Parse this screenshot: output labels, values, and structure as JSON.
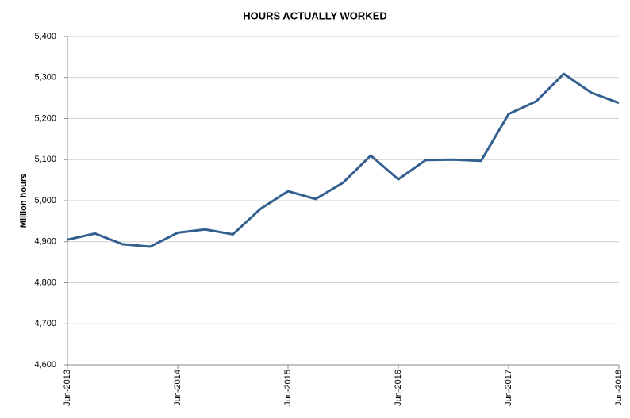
{
  "chart_data": {
    "type": "line",
    "title": "HOURS ACTUALLY WORKED",
    "y_label": "Million  hours",
    "x": [
      "Jun-2013",
      null,
      null,
      null,
      "Jun-2014",
      null,
      null,
      null,
      "Jun-2015",
      null,
      null,
      null,
      "Jun-2016",
      null,
      null,
      null,
      "Jun-2017",
      null,
      null,
      null,
      "Jun-2018"
    ],
    "series": [
      {
        "name": "Hours actually worked",
        "color": "#34608f",
        "values": [
          4905,
          4920,
          4894,
          4888,
          4922,
          4930,
          4918,
          4980,
          5023,
          5004,
          5044,
          5110,
          5052,
          5099,
          5100,
          5097,
          5211,
          5242,
          5309,
          5263,
          5238
        ]
      }
    ],
    "ylim": [
      4600,
      5400
    ],
    "yticks": [
      {
        "value": 4600,
        "label": "4,600"
      },
      {
        "value": 4700,
        "label": "4,700"
      },
      {
        "value": 4800,
        "label": "4,800"
      },
      {
        "value": 4900,
        "label": "4,900"
      },
      {
        "value": 5000,
        "label": "5,000"
      },
      {
        "value": 5100,
        "label": "5,100"
      },
      {
        "value": 5200,
        "label": "5,200"
      },
      {
        "value": 5300,
        "label": "5,300"
      },
      {
        "value": 5400,
        "label": "5,400"
      }
    ],
    "grid": true
  }
}
